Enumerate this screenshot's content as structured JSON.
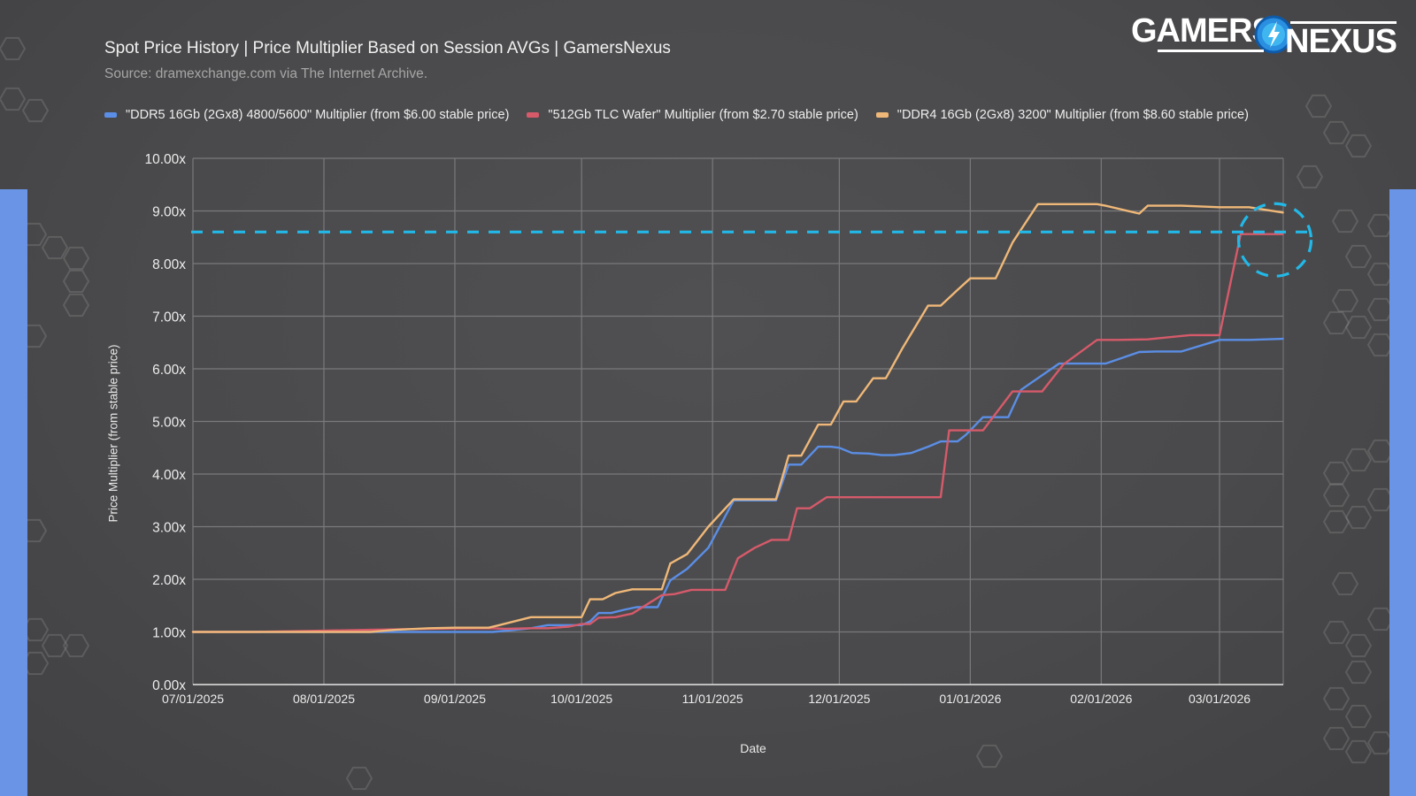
{
  "header": {
    "title": "Spot Price History | Price Multiplier Based on Session AVGs | GamersNexus",
    "subtitle": "Source: dramexchange.com via The Internet Archive."
  },
  "logo": {
    "left": "GAMERS",
    "right": "NEXUS"
  },
  "colors": {
    "background": "#4a4a4c",
    "grid": "#7a7a7c",
    "ddr5": "#5b8ee6",
    "wafer": "#d65a6a",
    "ddr4": "#f0b878",
    "highlight": "#22b8e8",
    "side_bar": "#6a94e6"
  },
  "chart_data": {
    "type": "line",
    "title": "Spot Price History | Price Multiplier Based on Session AVGs | GamersNexus",
    "subtitle": "Source: dramexchange.com via The Internet Archive.",
    "xlabel": "Date",
    "ylabel": "Price Multiplier (from stable price)",
    "x_unit": "days since 07/01/2025",
    "xlim": [
      0,
      258
    ],
    "ylim": [
      0,
      10
    ],
    "grid": true,
    "legend_position": "top",
    "x_ticks": [
      {
        "label": "07/01/2025",
        "day": 0
      },
      {
        "label": "08/01/2025",
        "day": 31
      },
      {
        "label": "09/01/2025",
        "day": 62
      },
      {
        "label": "10/01/2025",
        "day": 92
      },
      {
        "label": "11/01/2025",
        "day": 123
      },
      {
        "label": "12/01/2025",
        "day": 153
      },
      {
        "label": "01/01/2026",
        "day": 184
      },
      {
        "label": "02/01/2026",
        "day": 215
      },
      {
        "label": "03/01/2026",
        "day": 243
      }
    ],
    "y_ticks": [
      "0.00x",
      "1.00x",
      "2.00x",
      "3.00x",
      "4.00x",
      "5.00x",
      "6.00x",
      "7.00x",
      "8.00x",
      "9.00x",
      "10.00x"
    ],
    "reference_line": {
      "value": 8.6,
      "style": "dashed"
    },
    "highlight_circle": {
      "day": 254,
      "value": 8.5
    },
    "series": [
      {
        "key": "ddr5",
        "name": "\"DDR5 16Gb (2Gx8) 4800/5600\" Multiplier (from $6.00 stable price)",
        "points": [
          [
            0,
            1.0
          ],
          [
            14,
            1.0
          ],
          [
            28,
            1.0
          ],
          [
            42,
            1.0
          ],
          [
            56,
            1.0
          ],
          [
            70,
            1.0
          ],
          [
            71,
            1.0
          ],
          [
            75,
            1.03
          ],
          [
            80,
            1.07
          ],
          [
            84,
            1.13
          ],
          [
            89,
            1.13
          ],
          [
            92,
            1.13
          ],
          [
            94,
            1.2
          ],
          [
            96,
            1.36
          ],
          [
            99,
            1.36
          ],
          [
            102,
            1.42
          ],
          [
            105,
            1.47
          ],
          [
            110,
            1.47
          ],
          [
            113,
            1.98
          ],
          [
            117,
            2.2
          ],
          [
            122,
            2.6
          ],
          [
            128,
            3.5
          ],
          [
            136,
            3.5
          ],
          [
            138,
            3.5
          ],
          [
            141,
            4.18
          ],
          [
            144,
            4.18
          ],
          [
            148,
            4.52
          ],
          [
            151,
            4.52
          ],
          [
            153,
            4.5
          ],
          [
            156,
            4.4
          ],
          [
            160,
            4.39
          ],
          [
            163,
            4.36
          ],
          [
            166,
            4.36
          ],
          [
            170,
            4.4
          ],
          [
            174,
            4.52
          ],
          [
            177,
            4.62
          ],
          [
            181,
            4.62
          ],
          [
            183,
            4.75
          ],
          [
            187,
            5.08
          ],
          [
            190,
            5.08
          ],
          [
            193,
            5.08
          ],
          [
            196,
            5.6
          ],
          [
            205,
            6.1
          ],
          [
            209,
            6.1
          ],
          [
            214,
            6.1
          ],
          [
            216,
            6.1
          ],
          [
            224,
            6.32
          ],
          [
            228,
            6.33
          ],
          [
            234,
            6.33
          ],
          [
            243,
            6.55
          ],
          [
            250,
            6.55
          ],
          [
            258,
            6.57
          ]
        ]
      },
      {
        "key": "wafer",
        "name": "\"512Gb TLC Wafer\" Multiplier (from $2.70 stable price)",
        "points": [
          [
            0,
            1.0
          ],
          [
            14,
            1.0
          ],
          [
            28,
            1.02
          ],
          [
            42,
            1.04
          ],
          [
            56,
            1.06
          ],
          [
            70,
            1.07
          ],
          [
            74,
            1.06
          ],
          [
            80,
            1.07
          ],
          [
            84,
            1.07
          ],
          [
            89,
            1.1
          ],
          [
            92,
            1.15
          ],
          [
            94,
            1.15
          ],
          [
            96,
            1.27
          ],
          [
            100,
            1.28
          ],
          [
            104,
            1.35
          ],
          [
            108,
            1.55
          ],
          [
            111,
            1.7
          ],
          [
            114,
            1.72
          ],
          [
            118,
            1.8
          ],
          [
            122,
            1.8
          ],
          [
            126,
            1.8
          ],
          [
            129,
            2.4
          ],
          [
            133,
            2.6
          ],
          [
            137,
            2.75
          ],
          [
            141,
            2.75
          ],
          [
            143,
            3.35
          ],
          [
            146,
            3.35
          ],
          [
            150,
            3.56
          ],
          [
            156,
            3.56
          ],
          [
            162,
            3.56
          ],
          [
            168,
            3.56
          ],
          [
            174,
            3.56
          ],
          [
            177,
            3.56
          ],
          [
            179,
            4.83
          ],
          [
            181,
            4.83
          ],
          [
            185,
            4.83
          ],
          [
            187,
            4.83
          ],
          [
            194,
            5.57
          ],
          [
            198,
            5.57
          ],
          [
            201,
            5.57
          ],
          [
            206,
            6.08
          ],
          [
            214,
            6.55
          ],
          [
            219,
            6.55
          ],
          [
            226,
            6.56
          ],
          [
            236,
            6.64
          ],
          [
            243,
            6.64
          ],
          [
            248,
            8.56
          ],
          [
            253,
            8.56
          ],
          [
            258,
            8.56
          ]
        ]
      },
      {
        "key": "ddr4",
        "name": "\"DDR4 16Gb (2Gx8) 3200\" Multiplier (from $8.60 stable price)",
        "points": [
          [
            0,
            1.0
          ],
          [
            14,
            1.0
          ],
          [
            28,
            1.0
          ],
          [
            42,
            1.0
          ],
          [
            48,
            1.04
          ],
          [
            56,
            1.07
          ],
          [
            62,
            1.08
          ],
          [
            66,
            1.08
          ],
          [
            70,
            1.08
          ],
          [
            72,
            1.12
          ],
          [
            80,
            1.28
          ],
          [
            84,
            1.28
          ],
          [
            89,
            1.28
          ],
          [
            92,
            1.28
          ],
          [
            94,
            1.62
          ],
          [
            97,
            1.62
          ],
          [
            100,
            1.74
          ],
          [
            104,
            1.81
          ],
          [
            108,
            1.81
          ],
          [
            111,
            1.81
          ],
          [
            113,
            2.3
          ],
          [
            117,
            2.48
          ],
          [
            122,
            3.0
          ],
          [
            128,
            3.52
          ],
          [
            136,
            3.52
          ],
          [
            138,
            3.52
          ],
          [
            141,
            4.35
          ],
          [
            144,
            4.35
          ],
          [
            148,
            4.94
          ],
          [
            151,
            4.94
          ],
          [
            154,
            5.38
          ],
          [
            157,
            5.38
          ],
          [
            161,
            5.82
          ],
          [
            164,
            5.82
          ],
          [
            168,
            6.4
          ],
          [
            174,
            7.2
          ],
          [
            177,
            7.2
          ],
          [
            181,
            7.5
          ],
          [
            184,
            7.72
          ],
          [
            190,
            7.72
          ],
          [
            194,
            8.4
          ],
          [
            200,
            9.13
          ],
          [
            206,
            9.13
          ],
          [
            214,
            9.13
          ],
          [
            216,
            9.1
          ],
          [
            224,
            8.95
          ],
          [
            226,
            9.1
          ],
          [
            234,
            9.1
          ],
          [
            243,
            9.07
          ],
          [
            250,
            9.07
          ],
          [
            258,
            8.97
          ]
        ]
      }
    ]
  }
}
